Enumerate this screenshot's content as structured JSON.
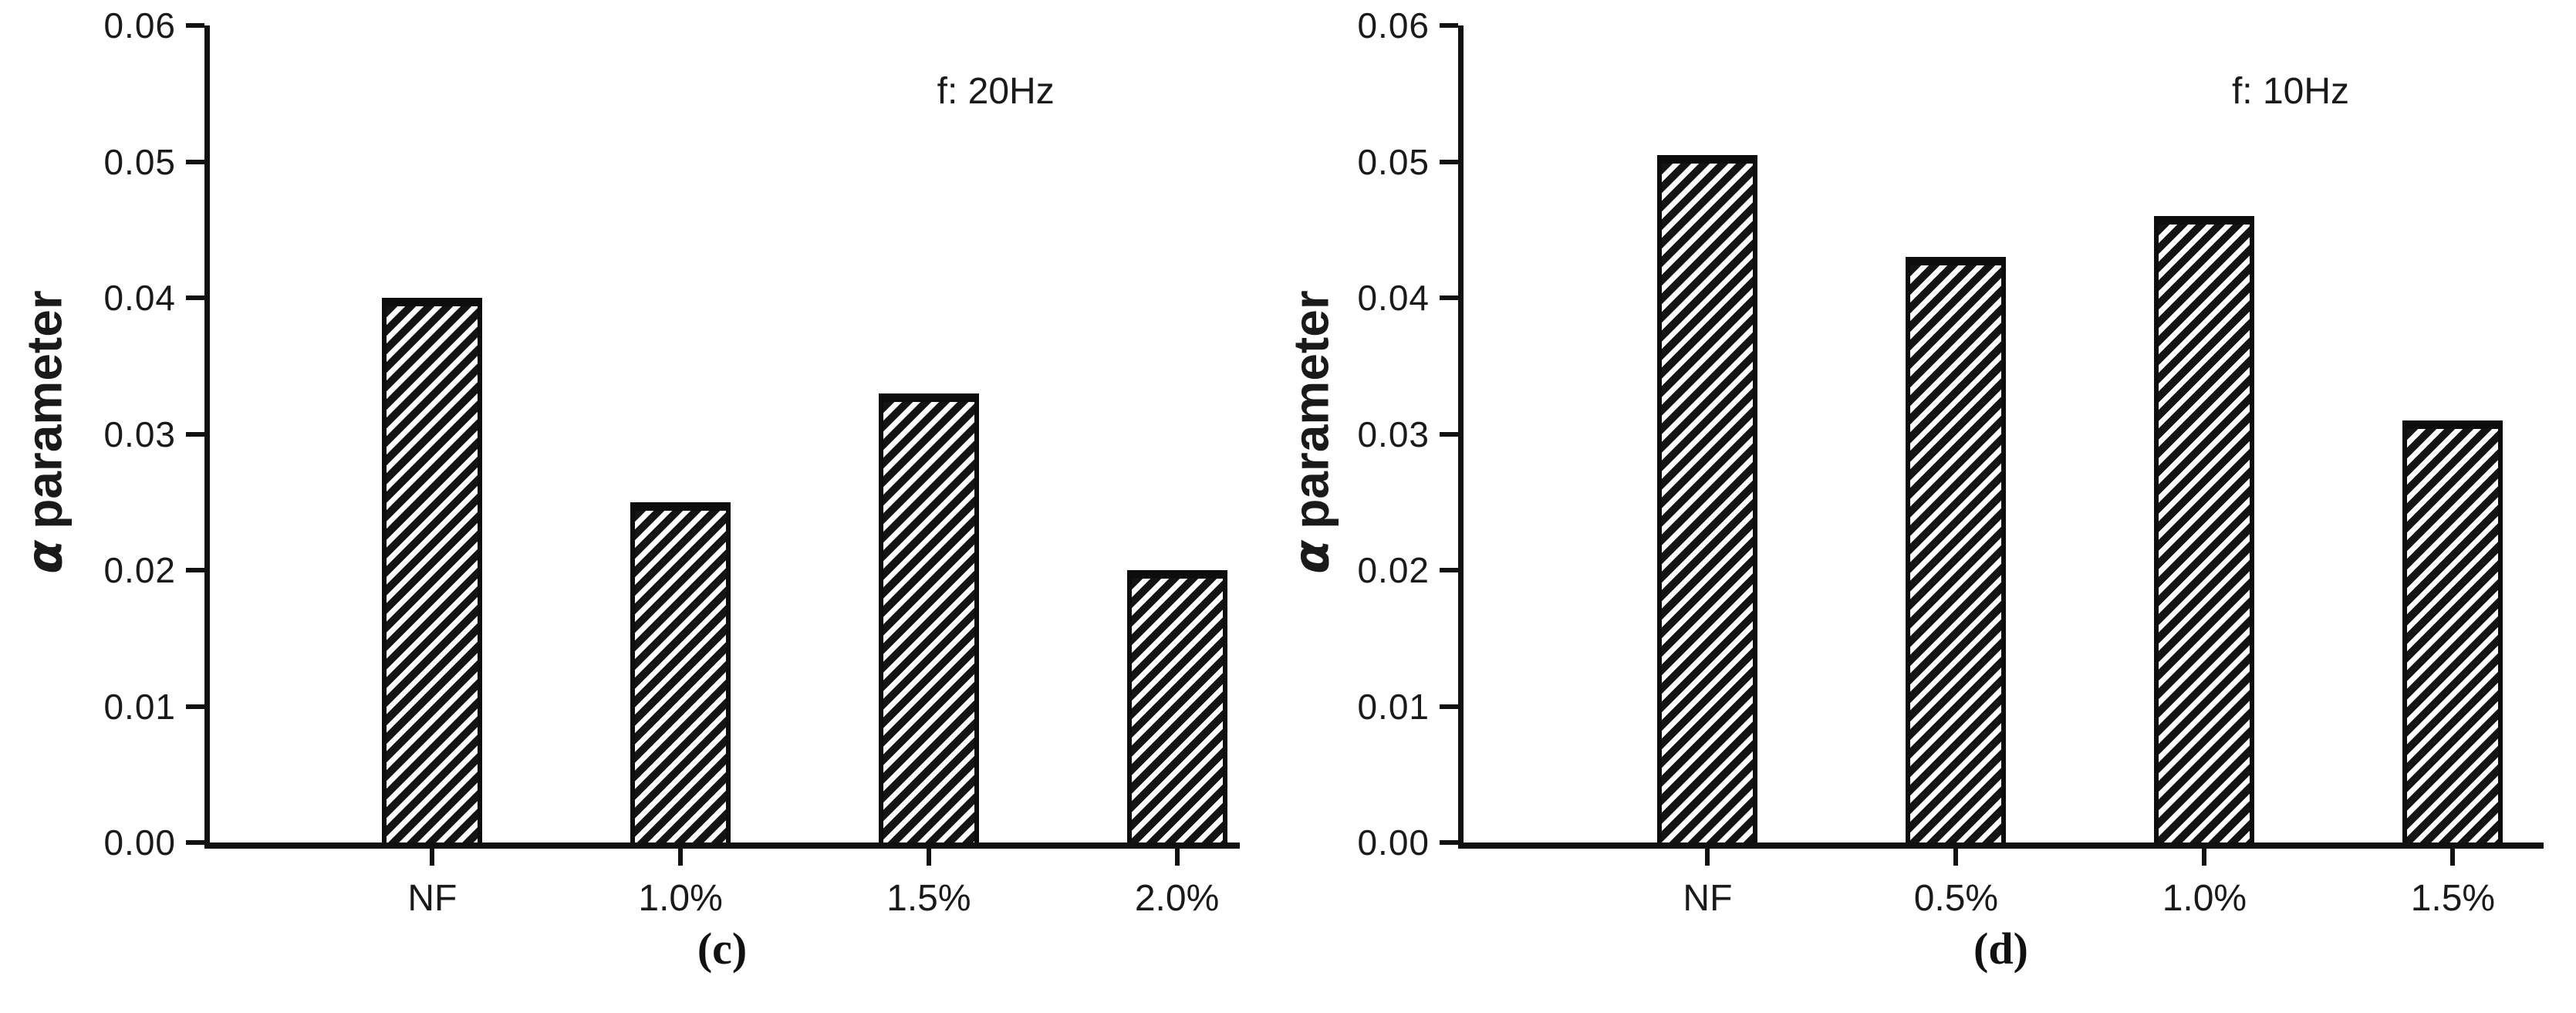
{
  "figure": {
    "ylabel_symbol": "α",
    "ylabel_text": "parameter"
  },
  "chart_data": [
    {
      "type": "bar",
      "panel": "c",
      "caption": "(c)",
      "annotation": "f: 20Hz",
      "title": "",
      "xlabel": "",
      "ylabel": "α parameter",
      "categories": [
        "NF",
        "1.0%",
        "1.5%",
        "2.0%"
      ],
      "values": [
        0.04,
        0.025,
        0.033,
        0.02
      ],
      "ylim": [
        0,
        0.06
      ],
      "ytick_step": 0.01,
      "ytick_labels": [
        "0.00",
        "0.01",
        "0.02",
        "0.03",
        "0.04",
        "0.05",
        "0.06"
      ],
      "grid": false,
      "legend": null,
      "hatch": "///",
      "bar_fill": "#ffffff",
      "hatch_color": "#141414",
      "axis_color": "#111111"
    },
    {
      "type": "bar",
      "panel": "d",
      "caption": "(d)",
      "annotation": "f: 10Hz",
      "title": "",
      "xlabel": "",
      "ylabel": "α parameter",
      "categories": [
        "NF",
        "0.5%",
        "1.0%",
        "1.5%"
      ],
      "values": [
        0.0505,
        0.043,
        0.046,
        0.031
      ],
      "ylim": [
        0,
        0.06
      ],
      "ytick_step": 0.01,
      "ytick_labels": [
        "0.00",
        "0.01",
        "0.02",
        "0.03",
        "0.04",
        "0.05",
        "0.06"
      ],
      "grid": false,
      "legend": null,
      "hatch": "///",
      "bar_fill": "#ffffff",
      "hatch_color": "#141414",
      "axis_color": "#111111"
    }
  ]
}
